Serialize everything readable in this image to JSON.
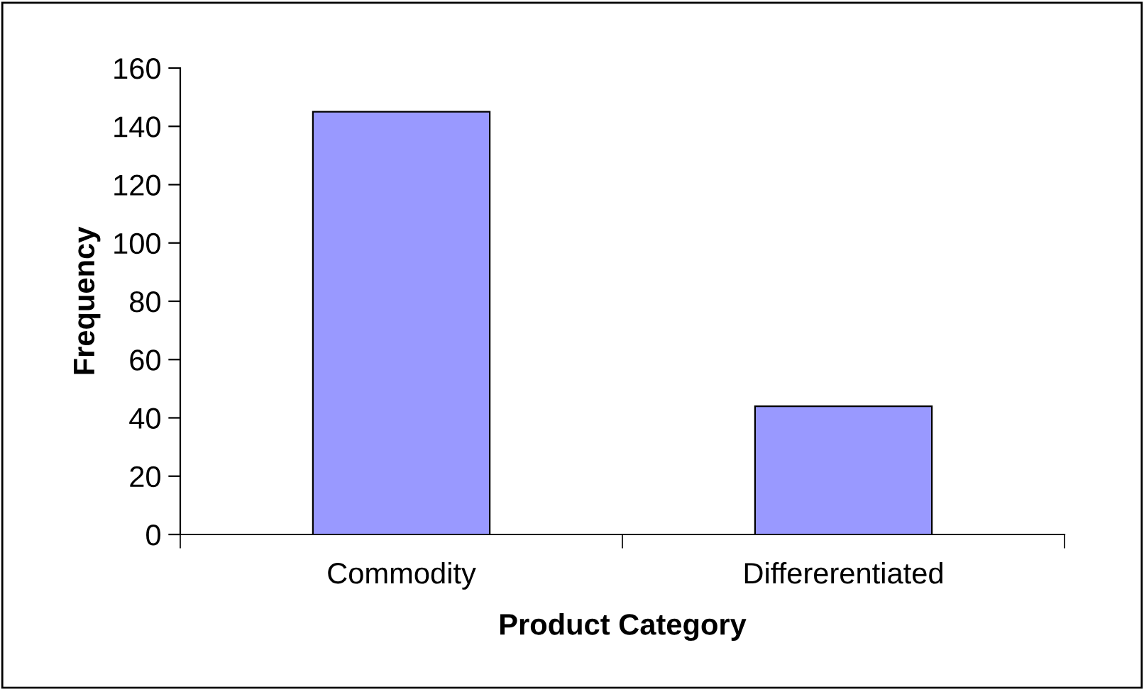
{
  "chart_data": {
    "type": "bar",
    "xlabel": "Product Category",
    "ylabel": "Frequency",
    "categories": [
      "Commodity",
      "Differerentiated"
    ],
    "values": [
      145,
      44
    ],
    "color": "#9999ff",
    "ylim": [
      0,
      160
    ],
    "yticks": [
      0,
      20,
      40,
      60,
      80,
      100,
      120,
      140,
      160
    ],
    "grid": false,
    "legend": false
  }
}
